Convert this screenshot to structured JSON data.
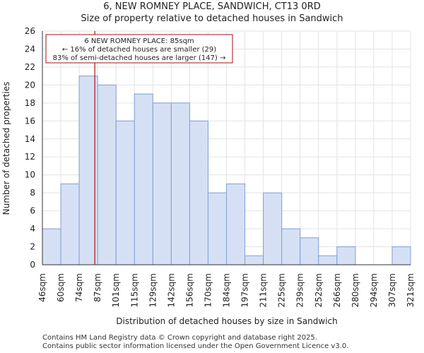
{
  "chart_data": {
    "type": "bar",
    "title": "6, NEW ROMNEY PLACE, SANDWICH, CT13 0RD",
    "subtitle": "Size of property relative to detached houses in Sandwich",
    "xlabel": "Distribution of detached houses by size in Sandwich",
    "ylabel": "Number of detached properties",
    "bin_edges": [
      "46sqm",
      "60sqm",
      "74sqm",
      "87sqm",
      "101sqm",
      "115sqm",
      "129sqm",
      "142sqm",
      "156sqm",
      "170sqm",
      "184sqm",
      "197sqm",
      "211sqm",
      "225sqm",
      "239sqm",
      "252sqm",
      "266sqm",
      "280sqm",
      "294sqm",
      "307sqm",
      "321sqm"
    ],
    "values": [
      4,
      9,
      21,
      20,
      16,
      19,
      18,
      18,
      16,
      8,
      9,
      1,
      8,
      4,
      3,
      1,
      2,
      0,
      0,
      2
    ],
    "ylim": [
      0,
      26
    ],
    "yticks": [
      0,
      2,
      4,
      6,
      8,
      10,
      12,
      14,
      16,
      18,
      20,
      22,
      24,
      26
    ],
    "grid": true,
    "bar_fill": "#d6e0f5",
    "bar_edge": "#7f9fd4",
    "marker": {
      "value_sqm": 85,
      "color": "#aa1111",
      "annotation": [
        "6 NEW ROMNEY PLACE: 85sqm",
        "← 16% of detached houses are smaller (29)",
        "83% of semi-detached houses are larger (147) →"
      ]
    }
  },
  "footer": {
    "line1": "Contains HM Land Registry data © Crown copyright and database right 2025.",
    "line2": "Contains public sector information licensed under the Open Government Licence v3.0."
  }
}
